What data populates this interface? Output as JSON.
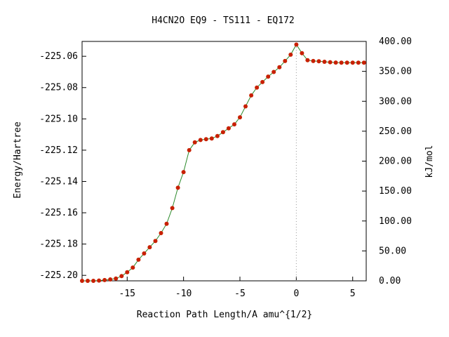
{
  "chart_data": {
    "type": "scatter",
    "title": "H4CN2O   EQ9 - TS111 - EQ172",
    "xlabel": "Reaction Path Length/A amu^{1/2}",
    "ylabel": "Energy/Hartree",
    "y2label": "kJ/mol",
    "xlim": [
      -19,
      6.2
    ],
    "ylim": [
      -225.2035,
      -225.0505
    ],
    "y2lim": [
      0,
      400
    ],
    "x_ticks": [
      -15,
      -10,
      -5,
      0,
      5
    ],
    "x_tick_labels": [
      "-15",
      "-10",
      "-5",
      "0",
      "5"
    ],
    "y_ticks": [
      -225.2,
      -225.18,
      -225.16,
      -225.14,
      -225.12,
      -225.1,
      -225.08,
      -225.06
    ],
    "y_tick_labels": [
      "-225.20",
      "-225.18",
      "-225.16",
      "-225.14",
      "-225.12",
      "-225.10",
      "-225.08",
      "-225.06"
    ],
    "y2_ticks": [
      0,
      50,
      100,
      150,
      200,
      250,
      300,
      350,
      400
    ],
    "y2_tick_labels": [
      "0.00",
      "50.00",
      "100.00",
      "150.00",
      "200.00",
      "250.00",
      "300.00",
      "350.00",
      "400.00"
    ],
    "ts_marker_x": 0,
    "grid": false,
    "marker_color": "#c82000",
    "line_color": "#2a8a2a",
    "ts_line_color": "#999999",
    "series": [
      {
        "x": [
          -19.0,
          -18.5,
          -18.0,
          -17.5,
          -17.0,
          -16.5,
          -16.0,
          -15.5,
          -15.0,
          -14.5,
          -14.0,
          -13.5,
          -13.0,
          -12.5,
          -12.0,
          -11.5,
          -11.0,
          -10.5,
          -10.0,
          -9.5,
          -9.0,
          -8.5,
          -8.0,
          -7.5,
          -7.0,
          -6.5,
          -6.0,
          -5.5,
          -5.0,
          -4.5,
          -4.0,
          -3.5,
          -3.0,
          -2.5,
          -2.0,
          -1.5,
          -1.0,
          -0.5,
          0.0,
          0.5,
          1.0,
          1.5,
          2.0,
          2.5,
          3.0,
          3.5,
          4.0,
          4.5,
          5.0,
          5.5,
          6.0
        ],
        "y": [
          -225.2035,
          -225.2035,
          -225.2035,
          -225.2033,
          -225.203,
          -225.2026,
          -225.202,
          -225.2005,
          -225.198,
          -225.195,
          -225.19,
          -225.186,
          -225.182,
          -225.178,
          -225.173,
          -225.167,
          -225.157,
          -225.144,
          -225.134,
          -225.12,
          -225.115,
          -225.1135,
          -225.113,
          -225.1125,
          -225.111,
          -225.1085,
          -225.106,
          -225.1035,
          -225.099,
          -225.092,
          -225.085,
          -225.08,
          -225.0765,
          -225.073,
          -225.07,
          -225.067,
          -225.063,
          -225.059,
          -225.0525,
          -225.058,
          -225.0625,
          -225.063,
          -225.0632,
          -225.0635,
          -225.0638,
          -225.064,
          -225.0641,
          -225.0641,
          -225.0641,
          -225.0641,
          -225.0641
        ]
      }
    ]
  }
}
